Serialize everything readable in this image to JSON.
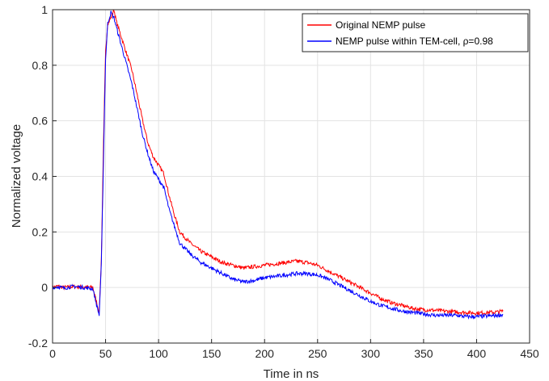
{
  "chart_data": {
    "type": "line",
    "title": "",
    "xlabel": "Time in ns",
    "ylabel": "Normalized voltage",
    "xlim": [
      0,
      450
    ],
    "ylim": [
      -0.2,
      1
    ],
    "xticks": [
      0,
      50,
      100,
      150,
      200,
      250,
      300,
      350,
      400,
      450
    ],
    "yticks": [
      -0.2,
      0,
      0.2,
      0.4,
      0.6,
      0.8,
      1
    ],
    "grid": true,
    "legend_position": "top-right",
    "series": [
      {
        "name": "Original NEMP pulse",
        "color": "#ff0000",
        "points": [
          [
            0,
            0
          ],
          [
            5,
            0.005
          ],
          [
            10,
            0
          ],
          [
            20,
            0.003
          ],
          [
            30,
            0.002
          ],
          [
            38,
            0.0
          ],
          [
            42,
            -0.06
          ],
          [
            44,
            -0.09
          ],
          [
            46,
            0.1
          ],
          [
            48,
            0.5
          ],
          [
            50,
            0.85
          ],
          [
            52,
            0.95
          ],
          [
            55,
            0.97
          ],
          [
            58,
            1.0
          ],
          [
            60,
            0.96
          ],
          [
            65,
            0.9
          ],
          [
            70,
            0.84
          ],
          [
            75,
            0.78
          ],
          [
            80,
            0.69
          ],
          [
            85,
            0.6
          ],
          [
            90,
            0.52
          ],
          [
            95,
            0.47
          ],
          [
            100,
            0.44
          ],
          [
            105,
            0.41
          ],
          [
            110,
            0.33
          ],
          [
            115,
            0.26
          ],
          [
            120,
            0.2
          ],
          [
            130,
            0.16
          ],
          [
            140,
            0.13
          ],
          [
            150,
            0.11
          ],
          [
            160,
            0.09
          ],
          [
            170,
            0.08
          ],
          [
            180,
            0.07
          ],
          [
            190,
            0.075
          ],
          [
            200,
            0.08
          ],
          [
            210,
            0.085
          ],
          [
            220,
            0.09
          ],
          [
            230,
            0.095
          ],
          [
            240,
            0.09
          ],
          [
            250,
            0.08
          ],
          [
            260,
            0.06
          ],
          [
            270,
            0.04
          ],
          [
            280,
            0.02
          ],
          [
            290,
            0.0
          ],
          [
            300,
            -0.02
          ],
          [
            310,
            -0.04
          ],
          [
            320,
            -0.055
          ],
          [
            330,
            -0.065
          ],
          [
            340,
            -0.075
          ],
          [
            350,
            -0.08
          ],
          [
            360,
            -0.082
          ],
          [
            370,
            -0.085
          ],
          [
            380,
            -0.088
          ],
          [
            390,
            -0.09
          ],
          [
            400,
            -0.092
          ],
          [
            410,
            -0.09
          ],
          [
            420,
            -0.088
          ],
          [
            425,
            -0.085
          ]
        ]
      },
      {
        "name": "NEMP pulse within TEM-cell, ρ=0.98",
        "color": "#0000ff",
        "points": [
          [
            0,
            0
          ],
          [
            5,
            0.003
          ],
          [
            10,
            -0.002
          ],
          [
            20,
            0.004
          ],
          [
            30,
            0.0
          ],
          [
            38,
            -0.005
          ],
          [
            42,
            -0.07
          ],
          [
            44,
            -0.1
          ],
          [
            46,
            0.08
          ],
          [
            48,
            0.45
          ],
          [
            50,
            0.82
          ],
          [
            52,
            0.95
          ],
          [
            55,
            0.99
          ],
          [
            58,
            0.97
          ],
          [
            60,
            0.94
          ],
          [
            65,
            0.87
          ],
          [
            70,
            0.8
          ],
          [
            75,
            0.73
          ],
          [
            80,
            0.64
          ],
          [
            85,
            0.55
          ],
          [
            90,
            0.48
          ],
          [
            95,
            0.42
          ],
          [
            100,
            0.39
          ],
          [
            105,
            0.36
          ],
          [
            110,
            0.28
          ],
          [
            115,
            0.22
          ],
          [
            120,
            0.16
          ],
          [
            130,
            0.12
          ],
          [
            140,
            0.09
          ],
          [
            150,
            0.07
          ],
          [
            160,
            0.05
          ],
          [
            170,
            0.03
          ],
          [
            180,
            0.02
          ],
          [
            190,
            0.025
          ],
          [
            200,
            0.035
          ],
          [
            210,
            0.04
          ],
          [
            220,
            0.045
          ],
          [
            230,
            0.05
          ],
          [
            240,
            0.05
          ],
          [
            250,
            0.045
          ],
          [
            260,
            0.03
          ],
          [
            270,
            0.01
          ],
          [
            280,
            -0.01
          ],
          [
            290,
            -0.03
          ],
          [
            300,
            -0.05
          ],
          [
            310,
            -0.065
          ],
          [
            320,
            -0.075
          ],
          [
            330,
            -0.085
          ],
          [
            340,
            -0.09
          ],
          [
            350,
            -0.095
          ],
          [
            360,
            -0.1
          ],
          [
            370,
            -0.1
          ],
          [
            380,
            -0.1
          ],
          [
            390,
            -0.105
          ],
          [
            400,
            -0.105
          ],
          [
            410,
            -0.103
          ],
          [
            420,
            -0.1
          ],
          [
            425,
            -0.098
          ]
        ]
      }
    ]
  }
}
